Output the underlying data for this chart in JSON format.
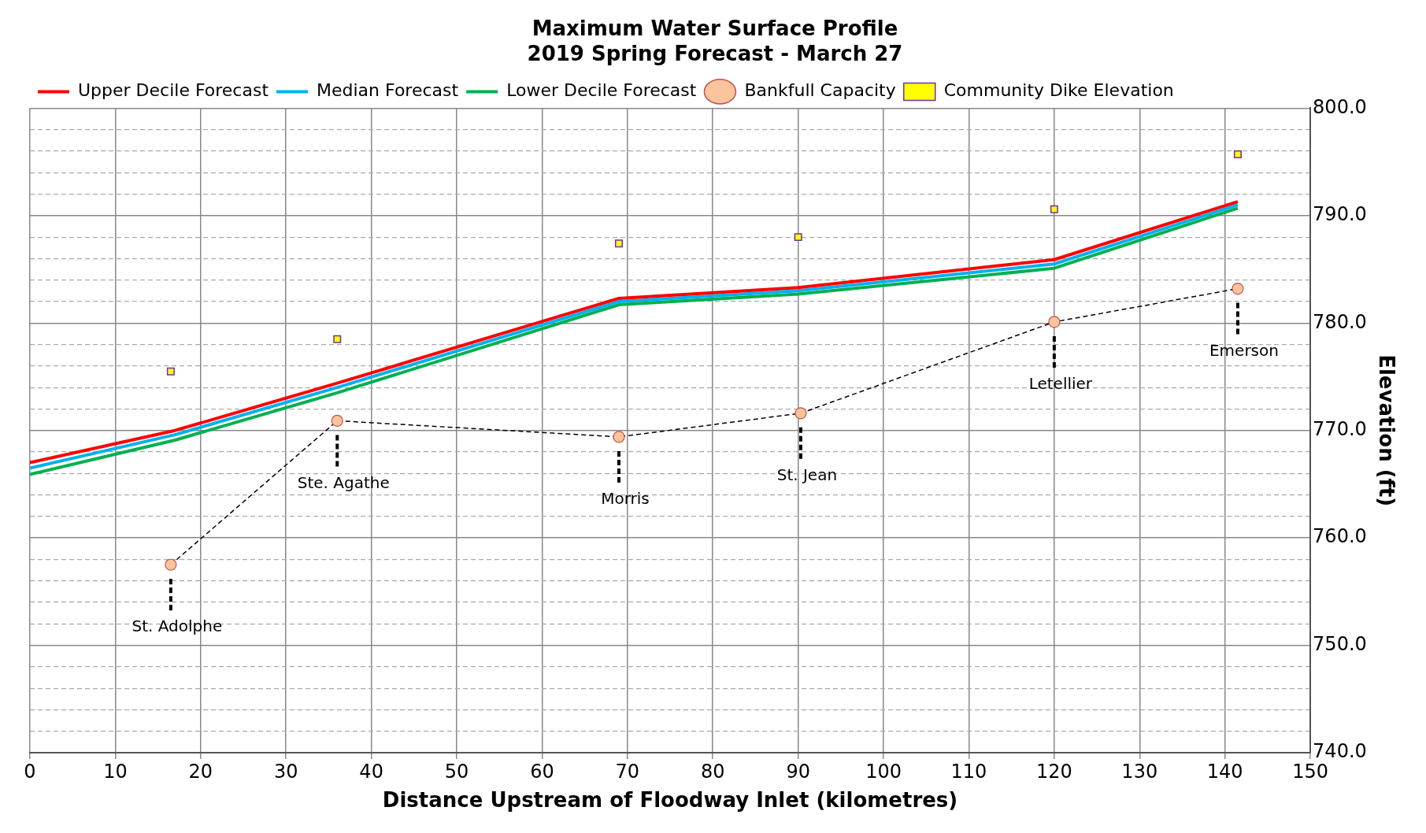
{
  "chart_data": {
    "type": "line",
    "title": "Maximum Water Surface Profile\n2019 Spring Forecast - March 27",
    "xlabel": "Distance Upstream of Floodway Inlet (kilometres)",
    "ylabel": "Elevation (ft)",
    "xlim": [
      0,
      150
    ],
    "xticks": [
      0,
      10,
      20,
      30,
      40,
      50,
      60,
      70,
      80,
      90,
      100,
      110,
      120,
      130,
      140,
      150
    ],
    "ylim": [
      740,
      800
    ],
    "yticks": [
      {
        "value": 740,
        "label": "740.0"
      },
      {
        "value": 742,
        "label": null
      },
      {
        "value": 744,
        "label": null
      },
      {
        "value": 746,
        "label": null
      },
      {
        "value": 748,
        "label": null
      },
      {
        "value": 750,
        "label": "750.0"
      },
      {
        "value": 752,
        "label": null
      },
      {
        "value": 754,
        "label": null
      },
      {
        "value": 756,
        "label": null
      },
      {
        "value": 758,
        "label": null
      },
      {
        "value": 760,
        "label": "760.0"
      },
      {
        "value": 762,
        "label": null
      },
      {
        "value": 764,
        "label": null
      },
      {
        "value": 766,
        "label": null
      },
      {
        "value": 768,
        "label": null
      },
      {
        "value": 770,
        "label": "770.0"
      },
      {
        "value": 772,
        "label": null
      },
      {
        "value": 774,
        "label": null
      },
      {
        "value": 776,
        "label": null
      },
      {
        "value": 778,
        "label": null
      },
      {
        "value": 780,
        "label": "780.0"
      },
      {
        "value": 782,
        "label": null
      },
      {
        "value": 784,
        "label": null
      },
      {
        "value": 786,
        "label": null
      },
      {
        "value": 788,
        "label": null
      },
      {
        "value": 790,
        "label": "790.0"
      },
      {
        "value": 792,
        "label": null
      },
      {
        "value": 794,
        "label": null
      },
      {
        "value": 796,
        "label": null
      },
      {
        "value": 798,
        "label": null
      },
      {
        "value": 800,
        "label": "800.0"
      }
    ],
    "grid": true,
    "legend": "top left",
    "series": [
      {
        "name": "Upper Decile Forecast",
        "color": "#ff0000",
        "marker": "none",
        "line_style": "solid",
        "x": [
          0,
          17,
          36,
          69,
          90,
          120,
          141.5
        ],
        "values": [
          767.0,
          770.0,
          774.4,
          782.3,
          783.3,
          785.9,
          791.3
        ]
      },
      {
        "name": "Median Forecast",
        "color": "#00b0f0",
        "marker": "none",
        "line_style": "solid",
        "x": [
          0,
          17,
          36,
          69,
          90,
          120,
          141.5
        ],
        "values": [
          766.5,
          769.6,
          774.0,
          782.0,
          783.0,
          785.5,
          791.0
        ]
      },
      {
        "name": "Lower Decile Forecast",
        "color": "#00b050",
        "marker": "none",
        "line_style": "solid",
        "x": [
          0,
          17,
          36,
          69,
          90,
          120,
          141.5
        ],
        "values": [
          765.9,
          769.1,
          773.5,
          781.7,
          782.7,
          785.1,
          790.7
        ]
      },
      {
        "name": "Bankfull Capacity",
        "color": "#000000",
        "marker": "circle",
        "line_style": "dashed",
        "x": [
          16.5,
          36,
          69,
          90.3,
          120,
          141.5
        ],
        "values": [
          757.5,
          770.9,
          769.4,
          771.6,
          780.1,
          783.2
        ]
      },
      {
        "name": "Community Dike Elevation",
        "type": "scatter",
        "color": "#ffff00",
        "marker": "square",
        "x": [
          16.5,
          36,
          69,
          90,
          120,
          141.5
        ],
        "values": [
          775.5,
          778.5,
          787.4,
          788.0,
          790.6,
          795.7
        ]
      }
    ],
    "annotations": [
      "St. Adolphe",
      "Ste. Agathe",
      "Morris",
      "St. Jean",
      "Letellier",
      "Emerson"
    ]
  }
}
